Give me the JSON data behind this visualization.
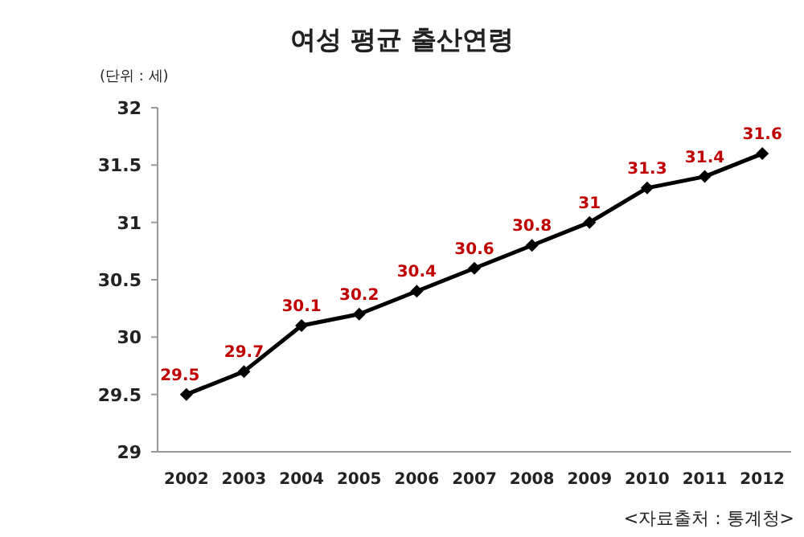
{
  "chart_data": {
    "type": "line",
    "title": "여성 평균 출산연령",
    "ylabel": "(단위 : 세)",
    "annotations": [
      "<자료출처 : 통계청>"
    ],
    "categories": [
      "2002",
      "2003",
      "2004",
      "2005",
      "2006",
      "2007",
      "2008",
      "2009",
      "2010",
      "2011",
      "2012"
    ],
    "series": [
      {
        "color": "#000000",
        "values": [
          29.5,
          29.7,
          30.1,
          30.2,
          30.4,
          30.6,
          30.8,
          31,
          31.3,
          31.4,
          31.6
        ]
      }
    ],
    "ylim": [
      29,
      32
    ],
    "yticks": [
      29,
      29.5,
      30,
      30.5,
      31,
      31.5,
      32
    ],
    "data_labels": true,
    "marker": "diamond",
    "line_style": "solid",
    "grid": false
  }
}
